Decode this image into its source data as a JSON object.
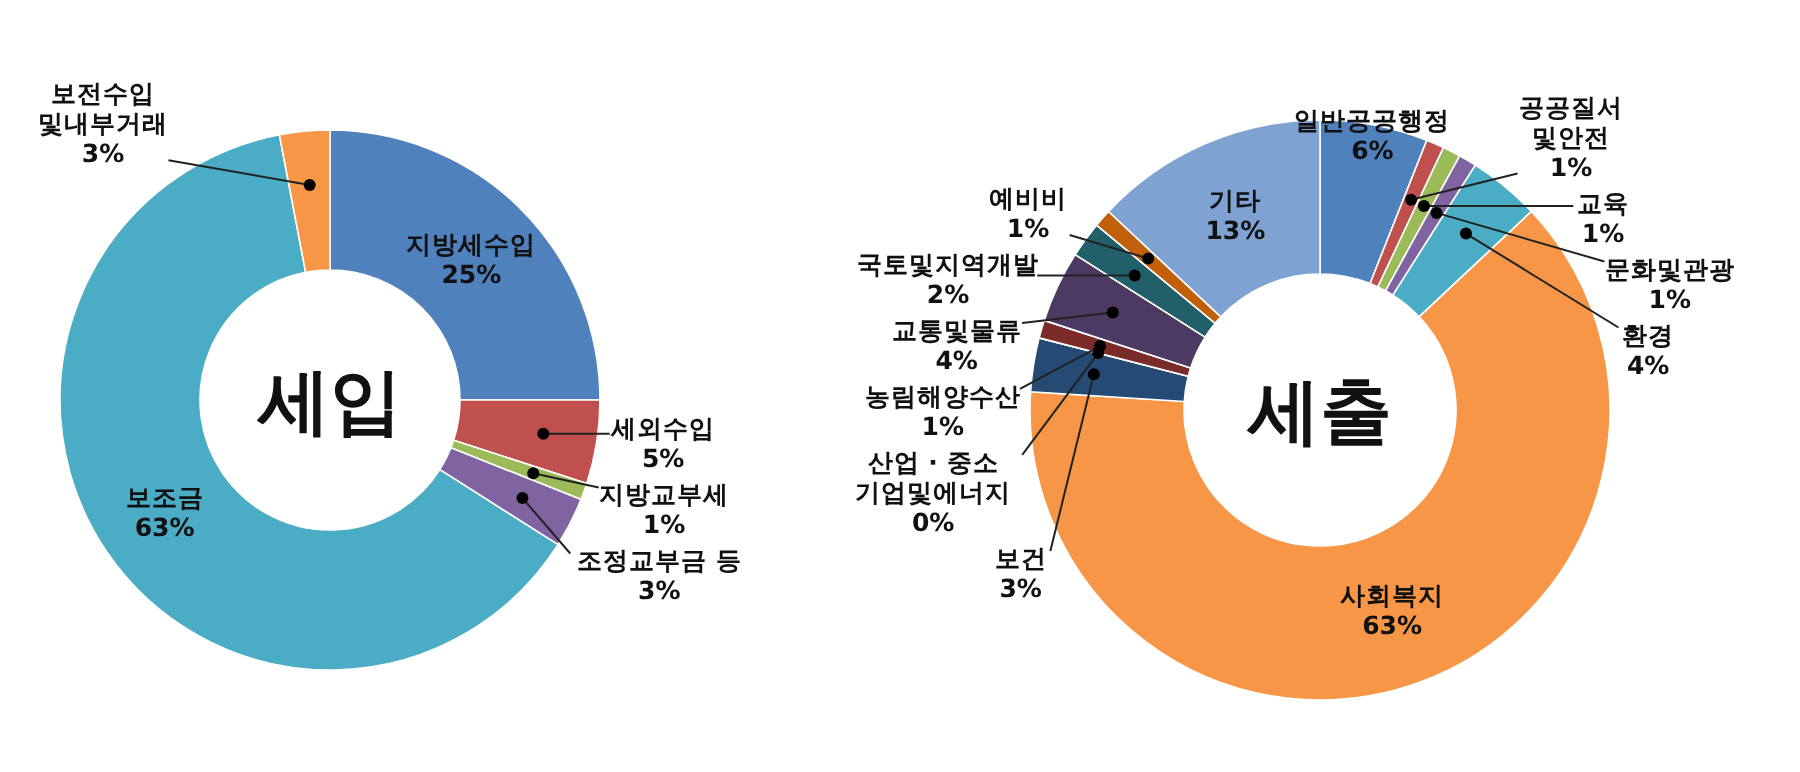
{
  "chart_data": [
    {
      "type": "donut",
      "title": "세입",
      "categories": [
        "지방세수입",
        "세외수입",
        "지방교부세",
        "조정교부금 등",
        "보조금",
        "보전수입 및내부거래"
      ],
      "values": [
        25,
        5,
        1,
        3,
        63,
        3
      ],
      "colors": [
        "#4f81bd",
        "#c0504d",
        "#9bbb59",
        "#8064a2",
        "#4bacc6",
        "#f79646"
      ],
      "value_labels": [
        "25%",
        "5%",
        "1%",
        "3%",
        "63%",
        "3%"
      ]
    },
    {
      "type": "donut",
      "title": "세출",
      "categories": [
        "일반공공행정",
        "공공질서 및안전",
        "교육",
        "문화및관광",
        "환경",
        "사회복지",
        "보건",
        "산업 · 중소기업및에너지",
        "농림해양수산",
        "교통및물류",
        "국토및지역개발",
        "예비비",
        "기타"
      ],
      "values": [
        6,
        1,
        1,
        1,
        4,
        63,
        3,
        0,
        1,
        4,
        2,
        1,
        13
      ],
      "colors": [
        "#4f81bd",
        "#c0504d",
        "#9bbb59",
        "#8064a2",
        "#4bacc6",
        "#f79646",
        "#254a74",
        "#5e7a2e",
        "#7b2c2a",
        "#4c3a63",
        "#215f6b",
        "#c0600a",
        "#7ea3d3"
      ],
      "value_labels": [
        "6%",
        "1%",
        "1%",
        "1%",
        "4%",
        "63%",
        "3%",
        "0%",
        "1%",
        "4%",
        "2%",
        "1%",
        "13%"
      ]
    }
  ]
}
